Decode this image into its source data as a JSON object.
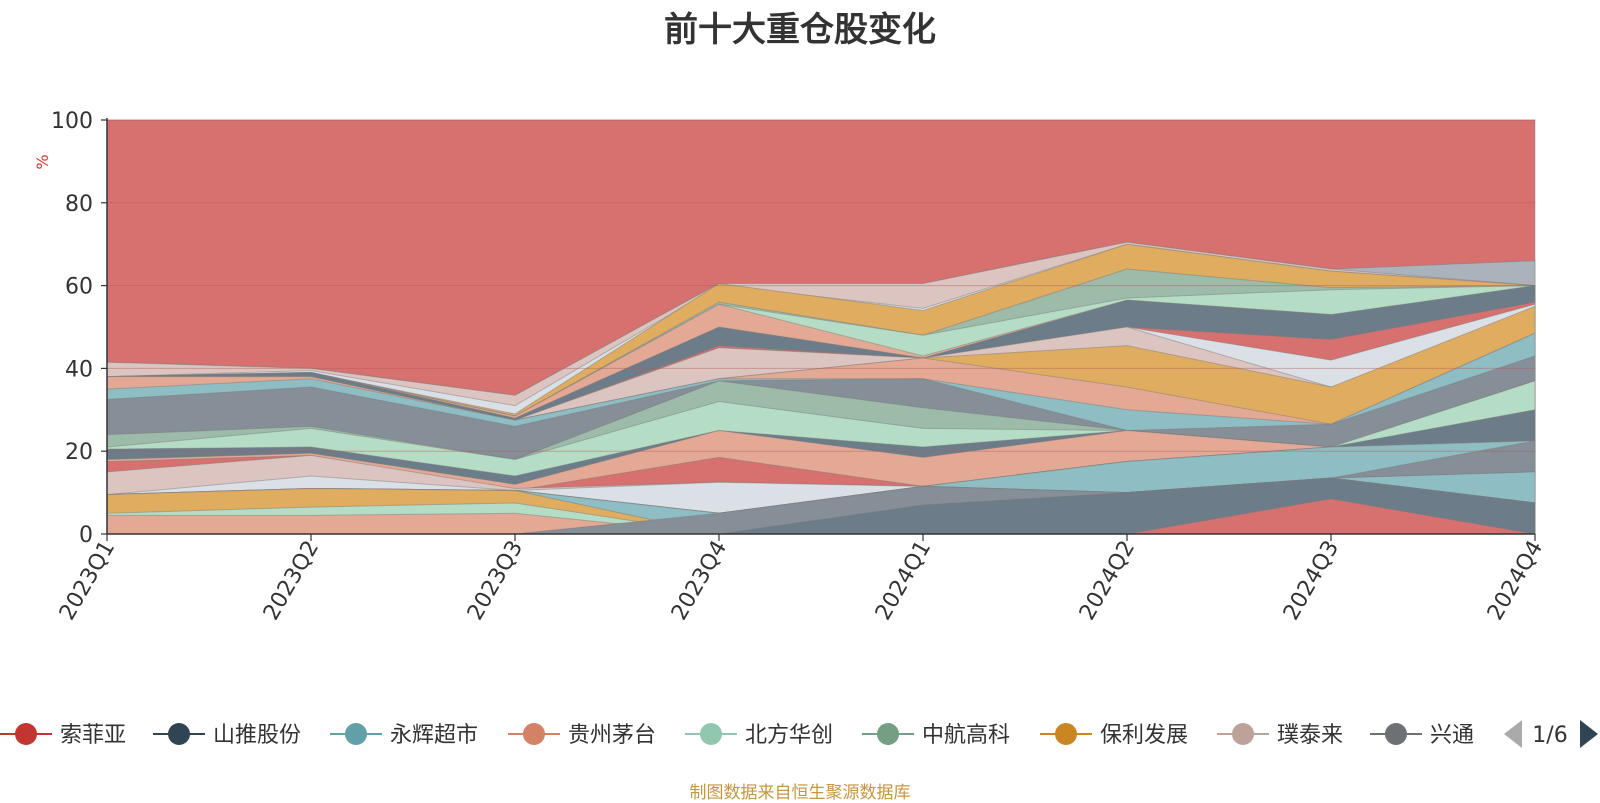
{
  "chart_data": {
    "type": "area",
    "title": "前十大重仓股变化",
    "ylabel": "%",
    "ylim": [
      0,
      100
    ],
    "yticks": [
      0,
      20,
      40,
      60,
      80,
      100
    ],
    "grid": true,
    "legend_position": "bottom",
    "x": [
      "2023Q1",
      "2023Q2",
      "2023Q3",
      "2023Q4",
      "2024Q1",
      "2024Q2",
      "2024Q3",
      "2024Q4"
    ],
    "series": [
      {
        "name": "",
        "color": "#d7716f",
        "values": [
          100,
          100,
          100,
          100,
          100,
          100,
          100,
          100
        ]
      },
      {
        "name": "",
        "color": "#aab3bc",
        "values": [
          41.5,
          40,
          33.5,
          60.5,
          60.5,
          70.5,
          64,
          66
        ]
      },
      {
        "name": "",
        "color": "#dcc4c0",
        "values": [
          41.5,
          40,
          33.5,
          60.5,
          60.5,
          70.5,
          64,
          60
        ]
      },
      {
        "name": "",
        "color": "#dbe0e6",
        "values": [
          38,
          39.5,
          31,
          60,
          54.5,
          70,
          63.5,
          60
        ]
      },
      {
        "name": "",
        "color": "#e0ac60",
        "values": [
          38,
          39,
          29,
          60.5,
          54,
          70,
          63.5,
          60
        ]
      },
      {
        "name": "",
        "color": "#9dbba9",
        "values": [
          38,
          39,
          28.5,
          56,
          48,
          64,
          59.5,
          60
        ]
      },
      {
        "name": "",
        "color": "#b5dcc5",
        "values": [
          38,
          39,
          28.5,
          55.5,
          48,
          57,
          59,
          60
        ]
      },
      {
        "name": "",
        "color": "#e3a995",
        "values": [
          38,
          39,
          28.5,
          55.5,
          43,
          56.5,
          53,
          56
        ]
      },
      {
        "name": "",
        "color": "#6c7d89",
        "values": [
          38,
          39,
          28,
          50,
          42.5,
          56.5,
          53,
          60
        ]
      },
      {
        "name": "",
        "color": "#d7716f",
        "values": [
          38,
          38,
          27.5,
          45.5,
          42.5,
          50,
          47,
          56
        ]
      },
      {
        "name": "",
        "color": "#dbe0e6",
        "values": [
          38,
          38,
          27.5,
          45,
          42.5,
          50,
          42,
          55.5
        ]
      },
      {
        "name": "",
        "color": "#dcc4c0",
        "values": [
          38,
          38,
          27.5,
          45,
          42.5,
          50,
          35.5,
          48.5
        ]
      },
      {
        "name": "",
        "color": "#e0ac60",
        "values": [
          38,
          38,
          27.5,
          37.5,
          42.5,
          45.5,
          35.5,
          55
        ]
      },
      {
        "name": "",
        "color": "#e3a995",
        "values": [
          38,
          38,
          27.5,
          37.5,
          42.5,
          35.5,
          26.5,
          48.5
        ]
      },
      {
        "name": "",
        "color": "#8ebdc3",
        "values": [
          35,
          37.5,
          27.5,
          37.5,
          37.5,
          30,
          26.5,
          48.5
        ]
      },
      {
        "name": "",
        "color": "#868f97",
        "values": [
          32.5,
          35.5,
          26,
          37,
          37.5,
          25,
          26.5,
          43
        ]
      },
      {
        "name": "",
        "color": "#9dbba9",
        "values": [
          24,
          26,
          18,
          37,
          30.5,
          25,
          21,
          37
        ]
      },
      {
        "name": "",
        "color": "#b5dcc5",
        "values": [
          21,
          25.5,
          18,
          32,
          25.5,
          25,
          21,
          37
        ]
      },
      {
        "name": "",
        "color": "#6c7d89",
        "values": [
          20.5,
          21,
          14,
          25,
          21,
          25,
          21,
          30
        ]
      },
      {
        "name": "",
        "color": "#e3a995",
        "values": [
          18,
          19.5,
          12,
          25,
          18.5,
          25,
          21,
          22.5
        ]
      },
      {
        "name": "",
        "color": "#d7716f",
        "values": [
          17.5,
          19,
          10.5,
          18.5,
          11.5,
          17.5,
          21,
          22.5
        ]
      },
      {
        "name": "",
        "color": "#dcc4c0",
        "values": [
          15,
          19,
          11,
          12.5,
          11.5,
          17.5,
          21,
          22.5
        ]
      },
      {
        "name": "",
        "color": "#dbe0e6",
        "values": [
          9.5,
          14,
          10.5,
          12.5,
          11.5,
          17.5,
          21,
          22.5
        ]
      },
      {
        "name": "",
        "color": "#8ebdc3",
        "values": [
          9.5,
          11,
          10.5,
          5,
          11.5,
          17.5,
          21,
          22.5
        ]
      },
      {
        "name": "",
        "color": "#868f97",
        "values": [
          9.5,
          11,
          10.5,
          5,
          11.5,
          10,
          13.5,
          22.5
        ]
      },
      {
        "name": "",
        "color": "#6c7d89",
        "values": [
          9.5,
          11,
          10.5,
          5,
          11.5,
          10,
          13.5,
          15
        ]
      },
      {
        "name": "",
        "color": "#8ebdc3",
        "values": [
          9.5,
          11,
          10.5,
          5,
          11.5,
          10,
          13.5,
          15
        ]
      },
      {
        "name": "",
        "color": "#e0ac60",
        "values": [
          9.5,
          11,
          10.5,
          0,
          7,
          10,
          13.5,
          7.5
        ]
      },
      {
        "name": "",
        "color": "#b5dcc5",
        "values": [
          5,
          6.5,
          7.5,
          0,
          7,
          10,
          13.5,
          7.5
        ]
      },
      {
        "name": "",
        "color": "#e3a995",
        "values": [
          4.5,
          4.5,
          5,
          0,
          7,
          10,
          13.5,
          7.5
        ]
      },
      {
        "name": "",
        "color": "#868f97",
        "values": [
          0,
          0,
          0,
          5,
          11.5,
          10,
          13.5,
          7.5
        ]
      },
      {
        "name": "",
        "color": "#6c7d89",
        "values": [
          0,
          0,
          0,
          0,
          7,
          10,
          13.5,
          7.5
        ]
      },
      {
        "name": "",
        "color": "#d7716f",
        "values": [
          0,
          0,
          0,
          0,
          0,
          0,
          8.5,
          0
        ]
      }
    ],
    "legend": [
      {
        "name": "索菲亚",
        "color": "#c23531"
      },
      {
        "name": "山推股份",
        "color": "#2f4554"
      },
      {
        "name": "永辉超市",
        "color": "#61a0a8"
      },
      {
        "name": "贵州茅台",
        "color": "#d48265"
      },
      {
        "name": "北方华创",
        "color": "#91c7ae"
      },
      {
        "name": "中航高科",
        "color": "#749f83"
      },
      {
        "name": "保利发展",
        "color": "#ca8622"
      },
      {
        "name": "璞泰来",
        "color": "#bda29a"
      },
      {
        "name": "兴通",
        "color": "#6e7074"
      }
    ],
    "pager": "1/6"
  },
  "source_note": "制图数据来自恒生聚源数据库",
  "colors": {
    "axis": "#333333",
    "grid": "#b05a58",
    "ylabel": "#e03030",
    "source": "#c8963c",
    "pager_prev": "#aaaaaa",
    "pager_next": "#2f4554"
  }
}
